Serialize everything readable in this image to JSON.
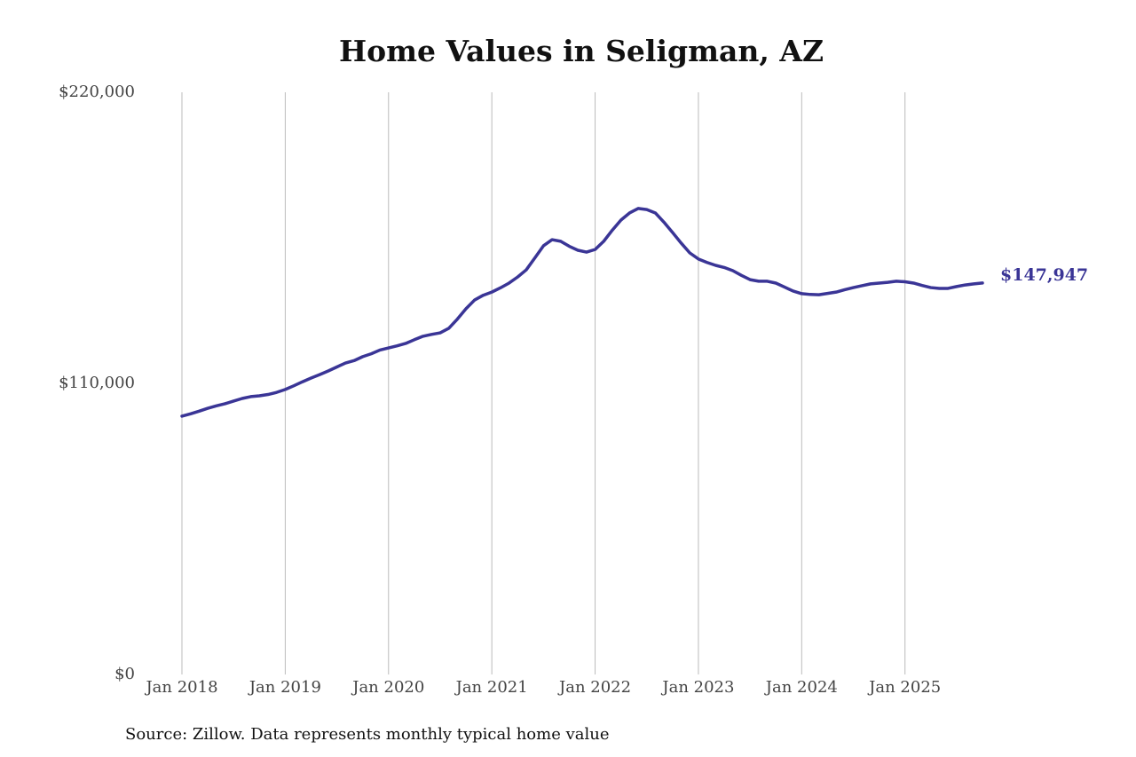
{
  "chart_data": {
    "type": "line",
    "title": "Home Values in Seligman, AZ",
    "source": "Source: Zillow. Data represents monthly typical home value",
    "x": [
      "2018-01",
      "2018-02",
      "2018-03",
      "2018-04",
      "2018-05",
      "2018-06",
      "2018-07",
      "2018-08",
      "2018-09",
      "2018-10",
      "2018-11",
      "2018-12",
      "2019-01",
      "2019-02",
      "2019-03",
      "2019-04",
      "2019-05",
      "2019-06",
      "2019-07",
      "2019-08",
      "2019-09",
      "2019-10",
      "2019-11",
      "2019-12",
      "2020-01",
      "2020-02",
      "2020-03",
      "2020-04",
      "2020-05",
      "2020-06",
      "2020-07",
      "2020-08",
      "2020-09",
      "2020-10",
      "2020-11",
      "2020-12",
      "2021-01",
      "2021-02",
      "2021-03",
      "2021-04",
      "2021-05",
      "2021-06",
      "2021-07",
      "2021-08",
      "2021-09",
      "2021-10",
      "2021-11",
      "2021-12",
      "2022-01",
      "2022-02",
      "2022-03",
      "2022-04",
      "2022-05",
      "2022-06",
      "2022-07",
      "2022-08",
      "2022-09",
      "2022-10",
      "2022-11",
      "2022-12",
      "2023-01",
      "2023-02",
      "2023-03",
      "2023-04",
      "2023-05",
      "2023-06",
      "2023-07",
      "2023-08",
      "2023-09",
      "2023-10",
      "2023-11",
      "2023-12",
      "2024-01",
      "2024-02",
      "2024-03",
      "2024-04",
      "2024-05",
      "2024-06",
      "2024-07",
      "2024-08",
      "2024-09",
      "2024-10",
      "2024-11",
      "2024-12",
      "2025-01",
      "2025-02",
      "2025-03",
      "2025-04",
      "2025-05",
      "2025-06",
      "2025-07",
      "2025-08",
      "2025-09",
      "2025-10"
    ],
    "series": [
      {
        "name": "Home Value",
        "color": "#3a3596",
        "values": [
          97600,
          98500,
          99500,
          100600,
          101500,
          102300,
          103300,
          104300,
          105000,
          105300,
          105800,
          106600,
          107700,
          109100,
          110600,
          112000,
          113300,
          114700,
          116200,
          117700,
          118600,
          120100,
          121200,
          122600,
          123400,
          124200,
          125100,
          126500,
          127800,
          128500,
          129100,
          130800,
          134300,
          138200,
          141500,
          143300,
          144500,
          146100,
          147900,
          150200,
          152900,
          157400,
          162000,
          164300,
          163700,
          161800,
          160300,
          159600,
          160600,
          163700,
          167900,
          171700,
          174400,
          176100,
          175700,
          174400,
          170900,
          167000,
          163000,
          159300,
          157000,
          155700,
          154600,
          153800,
          152600,
          150800,
          149200,
          148600,
          148600,
          147900,
          146400,
          144900,
          143900,
          143600,
          143500,
          144000,
          144500,
          145400,
          146200,
          146900,
          147600,
          147900,
          148200,
          148600,
          148400,
          147900,
          147000,
          146200,
          145900,
          145900,
          146600,
          147200,
          147600,
          147947
        ],
        "value_labels": [
          null,
          null,
          null,
          null,
          null,
          null,
          null,
          null,
          null,
          null,
          null,
          null,
          null,
          null,
          null,
          null,
          null,
          null,
          null,
          null,
          null,
          null,
          null,
          null,
          null,
          null,
          null,
          null,
          null,
          null,
          null,
          null,
          null,
          null,
          null,
          null,
          null,
          null,
          null,
          null,
          null,
          null,
          null,
          null,
          null,
          null,
          null,
          null,
          null,
          null,
          null,
          null,
          null,
          null,
          null,
          null,
          null,
          null,
          null,
          null,
          null,
          null,
          null,
          null,
          null,
          null,
          null,
          null,
          null,
          null,
          null,
          null,
          null,
          null,
          null,
          null,
          null,
          null,
          null,
          null,
          null,
          null,
          null,
          null,
          null,
          null,
          null,
          null,
          null,
          null,
          null,
          null,
          null,
          "$147,947"
        ]
      }
    ],
    "xlim": [
      "2018-01",
      "2025-10"
    ],
    "xticks": [
      {
        "value": "2018-01",
        "label": "Jan 2018"
      },
      {
        "value": "2019-01",
        "label": "Jan 2019"
      },
      {
        "value": "2020-01",
        "label": "Jan 2020"
      },
      {
        "value": "2021-01",
        "label": "Jan 2021"
      },
      {
        "value": "2022-01",
        "label": "Jan 2022"
      },
      {
        "value": "2023-01",
        "label": "Jan 2023"
      },
      {
        "value": "2024-01",
        "label": "Jan 2024"
      },
      {
        "value": "2025-01",
        "label": "Jan 2025"
      }
    ],
    "ylim": [
      0,
      220000
    ],
    "yticks": [
      {
        "value": 0,
        "label": "$0"
      },
      {
        "value": 110000,
        "label": "$110,000"
      },
      {
        "value": 220000,
        "label": "$220,000"
      }
    ],
    "grid": "x",
    "grid_color": "#bbbbbb"
  }
}
